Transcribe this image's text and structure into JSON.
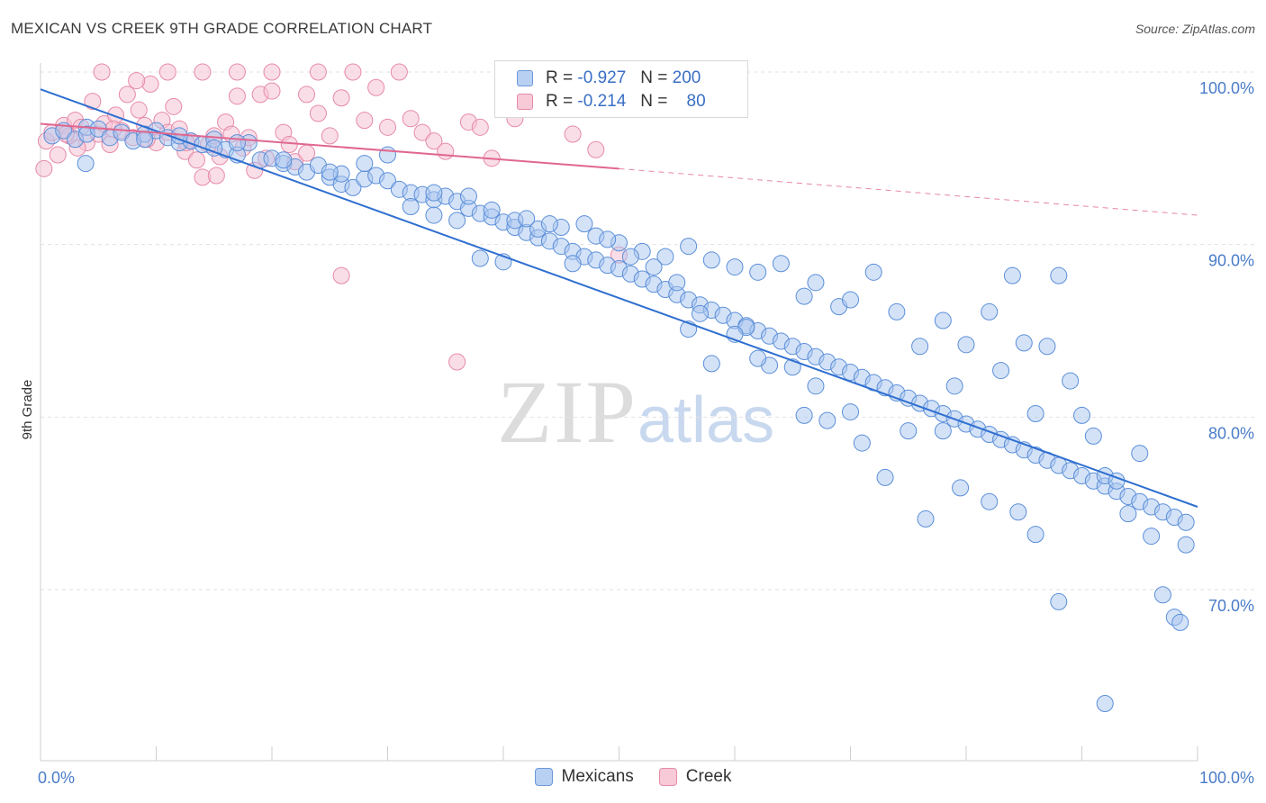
{
  "title": "MEXICAN VS CREEK 9TH GRADE CORRELATION CHART",
  "source": "Source: ZipAtlas.com",
  "watermark": {
    "zip": "ZIP",
    "atlas": "atlas"
  },
  "legend": {
    "mexicans": {
      "r_label": "R =",
      "r": "-0.927",
      "n_label": "N =",
      "n": "200"
    },
    "creek": {
      "r_label": "R =",
      "r": "-0.214",
      "n_label": "N =",
      "n": "80"
    }
  },
  "bottom_legend": [
    "Mexicans",
    "Creek"
  ],
  "colors": {
    "blue": "#5b8fd9",
    "blue_fill": "#a9c6ef",
    "pink": "#e68aa8",
    "pink_fill": "#f6c3d3",
    "blue_line": "#2f6fd0",
    "pink_line": "#e0678f"
  },
  "chart_data": {
    "type": "scatter",
    "ylabel": "9th Grade",
    "x_tick_labels": [
      "0.0%",
      "100.0%"
    ],
    "y_tick_labels": [
      "100.0%",
      "90.0%",
      "80.0%",
      "70.0%"
    ],
    "y_ticks": [
      100,
      90,
      80,
      70
    ],
    "xlim": [
      0,
      100
    ],
    "ylim": [
      61,
      101
    ],
    "grid": true,
    "series": [
      {
        "name": "Mexicans",
        "trend": {
          "x": [
            0,
            100
          ],
          "y": [
            99.0,
            74.8
          ]
        },
        "points": [
          [
            1,
            96.3
          ],
          [
            2,
            96.6
          ],
          [
            3,
            96.1
          ],
          [
            4,
            96.8
          ],
          [
            4,
            96.4
          ],
          [
            5,
            96.7
          ],
          [
            6,
            96.2
          ],
          [
            7,
            96.5
          ],
          [
            8,
            96.0
          ],
          [
            9,
            96.4
          ],
          [
            10,
            96.6
          ],
          [
            11,
            96.2
          ],
          [
            12,
            95.9
          ],
          [
            13,
            96.0
          ],
          [
            14,
            95.8
          ],
          [
            15,
            96.1
          ],
          [
            16,
            95.5
          ],
          [
            17,
            95.2
          ],
          [
            18,
            95.9
          ],
          [
            19,
            94.9
          ],
          [
            20,
            95.0
          ],
          [
            21,
            94.7
          ],
          [
            22,
            94.5
          ],
          [
            23,
            94.2
          ],
          [
            24,
            94.6
          ],
          [
            25,
            93.9
          ],
          [
            26,
            93.5
          ],
          [
            27,
            93.3
          ],
          [
            28,
            93.8
          ],
          [
            29,
            94.0
          ],
          [
            30,
            93.7
          ],
          [
            31,
            93.2
          ],
          [
            32,
            93.0
          ],
          [
            33,
            92.9
          ],
          [
            34,
            92.6
          ],
          [
            35,
            92.8
          ],
          [
            36,
            92.5
          ],
          [
            37,
            92.1
          ],
          [
            38,
            91.8
          ],
          [
            39,
            91.6
          ],
          [
            40,
            91.3
          ],
          [
            41,
            91.0
          ],
          [
            42,
            90.7
          ],
          [
            43,
            90.4
          ],
          [
            44,
            90.2
          ],
          [
            45,
            89.9
          ],
          [
            46,
            89.6
          ],
          [
            47,
            89.3
          ],
          [
            48,
            89.1
          ],
          [
            49,
            88.8
          ],
          [
            50,
            88.6
          ],
          [
            51,
            88.3
          ],
          [
            52,
            88.0
          ],
          [
            53,
            87.7
          ],
          [
            54,
            87.4
          ],
          [
            55,
            87.1
          ],
          [
            56,
            86.8
          ],
          [
            57,
            86.5
          ],
          [
            58,
            86.2
          ],
          [
            59,
            85.9
          ],
          [
            60,
            85.6
          ],
          [
            61,
            85.3
          ],
          [
            62,
            85.0
          ],
          [
            63,
            84.7
          ],
          [
            64,
            84.4
          ],
          [
            65,
            84.1
          ],
          [
            66,
            83.8
          ],
          [
            67,
            83.5
          ],
          [
            68,
            83.2
          ],
          [
            69,
            82.9
          ],
          [
            70,
            82.6
          ],
          [
            71,
            82.3
          ],
          [
            72,
            82.0
          ],
          [
            73,
            81.7
          ],
          [
            74,
            81.4
          ],
          [
            75,
            81.1
          ],
          [
            76,
            80.8
          ],
          [
            77,
            80.5
          ],
          [
            78,
            80.2
          ],
          [
            79,
            79.9
          ],
          [
            80,
            79.6
          ],
          [
            81,
            79.3
          ],
          [
            82,
            79.0
          ],
          [
            83,
            78.7
          ],
          [
            84,
            78.4
          ],
          [
            85,
            78.1
          ],
          [
            86,
            77.8
          ],
          [
            87,
            77.5
          ],
          [
            88,
            77.2
          ],
          [
            89,
            76.9
          ],
          [
            90,
            76.6
          ],
          [
            91,
            76.3
          ],
          [
            92,
            76.0
          ],
          [
            93,
            75.7
          ],
          [
            94,
            75.4
          ],
          [
            95,
            75.1
          ],
          [
            96,
            74.8
          ],
          [
            97,
            74.5
          ],
          [
            98,
            74.2
          ],
          [
            99,
            73.9
          ],
          [
            3.9,
            94.7
          ],
          [
            9,
            96.1
          ],
          [
            12,
            96.3
          ],
          [
            15,
            95.6
          ],
          [
            17,
            95.9
          ],
          [
            21,
            94.9
          ],
          [
            26,
            94.1
          ],
          [
            32,
            92.2
          ],
          [
            34,
            91.7
          ],
          [
            37,
            92.8
          ],
          [
            39,
            92.0
          ],
          [
            41,
            91.4
          ],
          [
            43,
            90.9
          ],
          [
            45,
            91.0
          ],
          [
            47,
            91.2
          ],
          [
            48,
            90.5
          ],
          [
            50,
            90.1
          ],
          [
            52,
            89.6
          ],
          [
            54,
            89.3
          ],
          [
            56,
            89.9
          ],
          [
            58,
            89.1
          ],
          [
            60,
            88.7
          ],
          [
            62,
            88.4
          ],
          [
            64,
            88.9
          ],
          [
            66,
            87.0
          ],
          [
            67,
            87.8
          ],
          [
            69,
            86.4
          ],
          [
            70,
            86.8
          ],
          [
            72,
            88.4
          ],
          [
            74,
            86.1
          ],
          [
            76,
            84.1
          ],
          [
            78,
            85.6
          ],
          [
            79,
            81.8
          ],
          [
            80,
            84.2
          ],
          [
            82,
            86.1
          ],
          [
            83,
            82.7
          ],
          [
            84,
            88.2
          ],
          [
            85,
            84.3
          ],
          [
            86,
            80.2
          ],
          [
            87,
            84.1
          ],
          [
            88,
            88.2
          ],
          [
            89,
            82.1
          ],
          [
            90,
            80.1
          ],
          [
            91,
            78.9
          ],
          [
            92,
            76.6
          ],
          [
            93,
            76.3
          ],
          [
            94,
            74.4
          ],
          [
            95,
            77.9
          ],
          [
            96,
            73.1
          ],
          [
            97,
            69.7
          ],
          [
            98,
            68.4
          ],
          [
            98.5,
            68.1
          ],
          [
            99,
            72.6
          ],
          [
            92,
            63.4
          ],
          [
            88,
            69.3
          ],
          [
            86,
            73.2
          ],
          [
            84.5,
            74.5
          ],
          [
            82,
            75.1
          ],
          [
            79.5,
            75.9
          ],
          [
            78,
            79.2
          ],
          [
            76.5,
            74.1
          ],
          [
            75,
            79.2
          ],
          [
            73,
            76.5
          ],
          [
            71,
            78.5
          ],
          [
            70,
            80.3
          ],
          [
            68,
            79.8
          ],
          [
            67,
            81.8
          ],
          [
            66,
            80.1
          ],
          [
            65,
            82.9
          ],
          [
            63,
            83.0
          ],
          [
            62,
            83.4
          ],
          [
            61,
            85.2
          ],
          [
            60,
            84.8
          ],
          [
            58,
            83.1
          ],
          [
            57,
            86.0
          ],
          [
            56,
            85.1
          ],
          [
            55,
            87.8
          ],
          [
            53,
            88.7
          ],
          [
            51,
            89.3
          ],
          [
            49,
            90.3
          ],
          [
            46,
            88.9
          ],
          [
            44,
            91.2
          ],
          [
            42,
            91.5
          ],
          [
            40,
            89.0
          ],
          [
            38,
            89.2
          ],
          [
            36,
            91.4
          ],
          [
            34,
            93.0
          ],
          [
            30,
            95.2
          ],
          [
            28,
            94.7
          ],
          [
            25,
            94.2
          ]
        ]
      },
      {
        "name": "Creek",
        "trend": {
          "x": [
            0,
            50
          ],
          "y": [
            97.0,
            94.4
          ]
        },
        "trend_dashed": {
          "x": [
            50,
            100
          ],
          "y": [
            94.4,
            91.7
          ]
        },
        "points": [
          [
            0.3,
            94.4
          ],
          [
            0.5,
            96.0
          ],
          [
            1,
            96.5
          ],
          [
            1.5,
            95.2
          ],
          [
            2,
            96.9
          ],
          [
            2.5,
            96.3
          ],
          [
            3,
            97.2
          ],
          [
            3.5,
            96.8
          ],
          [
            4,
            95.9
          ],
          [
            4.5,
            98.3
          ],
          [
            5,
            96.4
          ],
          [
            5.5,
            97.0
          ],
          [
            6,
            95.8
          ],
          [
            6.5,
            97.5
          ],
          [
            7,
            96.6
          ],
          [
            7.5,
            98.7
          ],
          [
            8,
            96.2
          ],
          [
            8.5,
            97.8
          ],
          [
            9,
            96.9
          ],
          [
            9.5,
            99.3
          ],
          [
            10,
            95.9
          ],
          [
            10.5,
            97.2
          ],
          [
            11,
            96.5
          ],
          [
            11.5,
            98.0
          ],
          [
            12,
            96.7
          ],
          [
            12.5,
            95.4
          ],
          [
            13,
            96.0
          ],
          [
            13.5,
            94.9
          ],
          [
            14,
            93.9
          ],
          [
            14.5,
            95.8
          ],
          [
            15,
            96.3
          ],
          [
            15.5,
            95.1
          ],
          [
            16,
            97.1
          ],
          [
            16.5,
            96.4
          ],
          [
            17,
            98.6
          ],
          [
            17.5,
            95.6
          ],
          [
            18,
            96.2
          ],
          [
            18.5,
            94.3
          ],
          [
            19,
            98.7
          ],
          [
            19.5,
            95.0
          ],
          [
            20,
            98.9
          ],
          [
            21,
            96.5
          ],
          [
            22,
            94.8
          ],
          [
            23,
            95.3
          ],
          [
            24,
            97.6
          ],
          [
            25,
            96.3
          ],
          [
            26,
            88.2
          ],
          [
            27,
            100.0
          ],
          [
            28,
            97.2
          ],
          [
            29,
            99.1
          ],
          [
            30,
            96.8
          ],
          [
            31,
            100.0
          ],
          [
            32,
            97.3
          ],
          [
            33,
            96.5
          ],
          [
            34,
            96.0
          ],
          [
            35,
            95.4
          ],
          [
            36,
            83.2
          ],
          [
            37,
            97.1
          ],
          [
            38,
            96.8
          ],
          [
            39,
            95.0
          ],
          [
            41,
            97.3
          ],
          [
            46,
            96.4
          ],
          [
            48,
            95.5
          ],
          [
            50,
            89.4
          ],
          [
            5.3,
            100.0
          ],
          [
            8.3,
            99.5
          ],
          [
            11,
            100.0
          ],
          [
            14,
            100.0
          ],
          [
            17,
            100.0
          ],
          [
            20,
            100.0
          ],
          [
            23,
            98.7
          ],
          [
            24,
            100.0
          ],
          [
            26,
            98.5
          ],
          [
            3.2,
            95.6
          ],
          [
            6.3,
            96.7
          ],
          [
            9.2,
            96.1
          ],
          [
            12.6,
            95.9
          ],
          [
            15.2,
            94.0
          ],
          [
            21.5,
            95.8
          ],
          [
            2.2,
            96.4
          ]
        ]
      }
    ]
  }
}
